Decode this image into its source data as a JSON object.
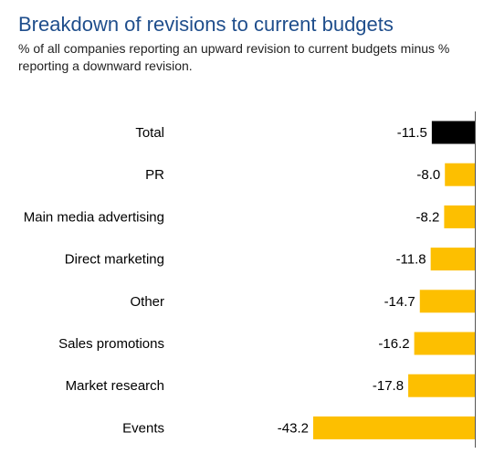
{
  "header": {
    "title": "Breakdown of revisions to current budgets",
    "subtitle": "% of all companies reporting an upward revision to current budgets minus % reporting a downward revision."
  },
  "colors": {
    "total": "#000000",
    "bar": "#fdbf00",
    "axis": "#555555"
  },
  "chart_data": {
    "type": "bar",
    "orientation": "horizontal",
    "title": "Breakdown of revisions to current budgets",
    "subtitle": "% of all companies reporting an upward revision to current budgets minus % reporting a downward revision.",
    "categories": [
      "Total",
      "PR",
      "Main media advertising",
      "Direct marketing",
      "Other",
      "Sales promotions",
      "Market research",
      "Events"
    ],
    "values": [
      -11.5,
      -8.0,
      -8.2,
      -11.8,
      -14.7,
      -16.2,
      -17.8,
      -43.2
    ],
    "value_labels": [
      "-11.5",
      "-8.0",
      "-8.2",
      "-11.8",
      "-14.7",
      "-16.2",
      "-17.8",
      "-43.2"
    ],
    "highlight": "Total",
    "xlabel": "",
    "ylabel": "",
    "xlim": [
      -43.2,
      0
    ],
    "grid": false,
    "legend": "none"
  }
}
